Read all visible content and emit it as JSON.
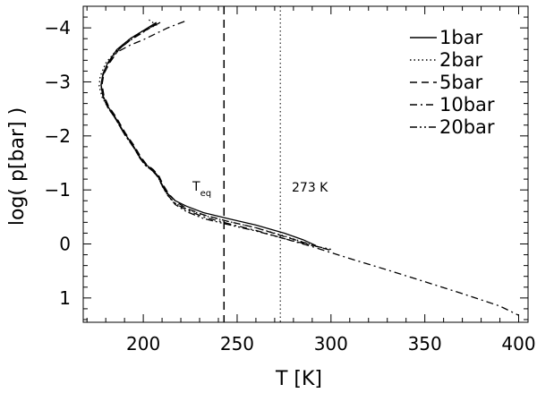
{
  "chart_data": {
    "type": "line",
    "xlabel": "T [K]",
    "ylabel": "log( p[bar] )",
    "xlim": [
      168,
      405
    ],
    "ylim": [
      1.45,
      -4.4
    ],
    "y_inverted": true,
    "x_ticks": [
      200,
      250,
      300,
      350,
      400
    ],
    "x_tick_labels": [
      "200",
      "250",
      "300",
      "350",
      "400"
    ],
    "y_ticks": [
      -4,
      -3,
      -2,
      -1,
      0,
      1
    ],
    "y_tick_labels": [
      "−4",
      "−3",
      "−2",
      "−1",
      "0",
      "1"
    ],
    "legend_position": "top-right",
    "series": [
      {
        "name": "1bar",
        "dash": "solid",
        "x": [
          207,
          200,
          193,
          186,
          181,
          178.5,
          177.5,
          178.5,
          181,
          185,
          190,
          195,
          198,
          201,
          205,
          208,
          210,
          213,
          217,
          223,
          232,
          245,
          260,
          275,
          285,
          292
        ],
        "y": [
          -4.1,
          -3.95,
          -3.8,
          -3.6,
          -3.35,
          -3.15,
          -2.95,
          -2.75,
          -2.55,
          -2.35,
          -2.05,
          -1.8,
          -1.62,
          -1.48,
          -1.37,
          -1.25,
          -1.1,
          -0.93,
          -0.8,
          -0.7,
          -0.58,
          -0.47,
          -0.35,
          -0.2,
          -0.08,
          0.03
        ]
      },
      {
        "name": "2bar",
        "dash": "dotted",
        "x": [
          203,
          207,
          200,
          193,
          186,
          180,
          177,
          176.5,
          178,
          181,
          185,
          190,
          195,
          198,
          201,
          205,
          208,
          210,
          213,
          217,
          223,
          232,
          245,
          260,
          275,
          290
        ],
        "y": [
          -4.15,
          -4.05,
          -3.95,
          -3.8,
          -3.6,
          -3.35,
          -3.1,
          -2.92,
          -2.72,
          -2.53,
          -2.33,
          -2.03,
          -1.78,
          -1.6,
          -1.46,
          -1.35,
          -1.23,
          -1.07,
          -0.9,
          -0.75,
          -0.65,
          -0.53,
          -0.42,
          -0.3,
          -0.15,
          0.02
        ]
      },
      {
        "name": "5bar",
        "dash": "dashed",
        "x": [
          209,
          201,
          194,
          187,
          182,
          179,
          178,
          179,
          181.5,
          185.5,
          190.5,
          195.5,
          198.5,
          201.5,
          205.5,
          208.5,
          210.5,
          213.5,
          217.5,
          223,
          232,
          245,
          260,
          275,
          290,
          300
        ],
        "y": [
          -4.1,
          -3.95,
          -3.8,
          -3.6,
          -3.35,
          -3.15,
          -2.95,
          -2.75,
          -2.55,
          -2.35,
          -2.05,
          -1.8,
          -1.62,
          -1.48,
          -1.37,
          -1.25,
          -1.1,
          -0.93,
          -0.78,
          -0.66,
          -0.54,
          -0.42,
          -0.3,
          -0.14,
          0.02,
          0.12
        ]
      },
      {
        "name": "10bar",
        "dash": "dashdot",
        "x": [
          222,
          213,
          207,
          200,
          193,
          186,
          181,
          178.5,
          177.5,
          178.5,
          181,
          185,
          190,
          195,
          198,
          201,
          205,
          208,
          210,
          213,
          217,
          223,
          232,
          245,
          260,
          275,
          290,
          310,
          330,
          350,
          370,
          390,
          400
        ],
        "y": [
          -4.12,
          -4.0,
          -3.9,
          -3.78,
          -3.68,
          -3.55,
          -3.32,
          -3.12,
          -2.93,
          -2.73,
          -2.53,
          -2.33,
          -2.03,
          -1.78,
          -1.6,
          -1.46,
          -1.35,
          -1.23,
          -1.08,
          -0.9,
          -0.75,
          -0.63,
          -0.5,
          -0.38,
          -0.25,
          -0.1,
          0.05,
          0.27,
          0.48,
          0.7,
          0.92,
          1.15,
          1.32
        ]
      },
      {
        "name": "20bar",
        "dash": "dashdotdot",
        "x": [
          207,
          200,
          193,
          186,
          181,
          178.5,
          177.5,
          178.5,
          181,
          185,
          190,
          195,
          198,
          201,
          205,
          208,
          210,
          213,
          217,
          223,
          232,
          245,
          260,
          275,
          290,
          300
        ],
        "y": [
          -4.08,
          -3.92,
          -3.77,
          -3.58,
          -3.33,
          -3.13,
          -2.93,
          -2.73,
          -2.53,
          -2.33,
          -2.03,
          -1.78,
          -1.6,
          -1.46,
          -1.35,
          -1.23,
          -1.08,
          -0.9,
          -0.73,
          -0.6,
          -0.47,
          -0.36,
          -0.24,
          -0.1,
          0.03,
          0.1
        ]
      }
    ],
    "reference_lines": [
      {
        "x": 243,
        "style": "dashed"
      },
      {
        "x": 273,
        "style": "dotted"
      }
    ],
    "annotations": {
      "teq_main": "T",
      "teq_sub": "eq",
      "k273": "273  K"
    }
  }
}
